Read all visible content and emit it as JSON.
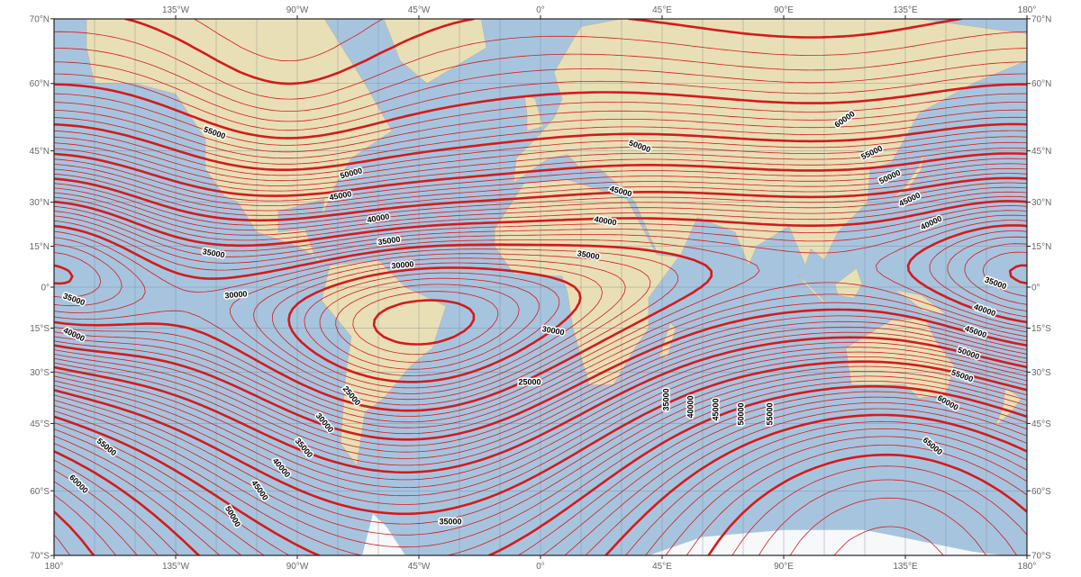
{
  "map": {
    "ocean_color": "#a7c4df",
    "land_color": "#e9dfb6",
    "ice_color": "#f6f8fa",
    "contour_color": "#d51a1a",
    "grid_color": "#6f7f8c"
  },
  "axes": {
    "top_lon_labels": [
      "135°W",
      "90°W",
      "45°W",
      "0°",
      "45°E",
      "90°E",
      "135°E",
      "180°"
    ],
    "bottom_lon_labels": [
      "180°",
      "135°W",
      "90°W",
      "45°W",
      "0°",
      "45°E",
      "90°E",
      "135°E",
      "180°"
    ],
    "lat_labels": [
      "70°N",
      "60°N",
      "45°N",
      "30°N",
      "15°N",
      "0°",
      "15°S",
      "30°S",
      "45°S",
      "60°S",
      "70°S"
    ]
  },
  "contour_labels": [
    "55000",
    "50000",
    "45000",
    "40000",
    "35000",
    "35000",
    "30000",
    "30000",
    "35000",
    "40000",
    "25000",
    "30000",
    "35000",
    "40000",
    "45000",
    "50000",
    "55000",
    "60000",
    "35000",
    "30000",
    "25000",
    "35000",
    "40000",
    "45000",
    "50000",
    "60000",
    "55000",
    "50000",
    "45000",
    "40000",
    "35000",
    "40000",
    "45000",
    "50000",
    "55000",
    "60000",
    "65000",
    "35000",
    "40000",
    "45000",
    "50000",
    "55000"
  ]
}
